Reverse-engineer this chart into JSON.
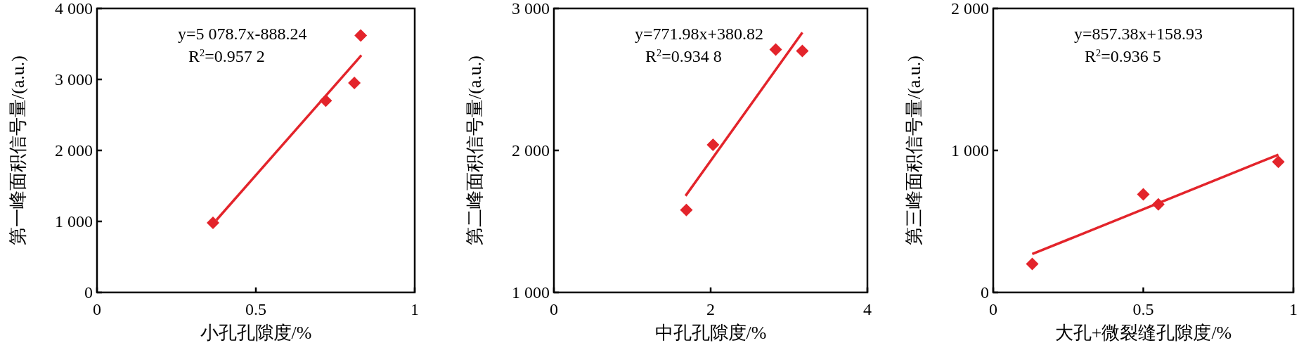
{
  "chart_data": [
    {
      "type": "scatter",
      "xlabel": "小孔孔隙度/%",
      "ylabel": "第一峰面积信号量/(a.u.)",
      "annotations": [
        "y=5 078.7x-888.24",
        "R$^{2}$=0.957 2"
      ],
      "xlim": [
        0,
        1
      ],
      "xticks": [
        0,
        0.5,
        1
      ],
      "ylim": [
        0,
        4000
      ],
      "yticks": [
        0,
        {
          "value": 1000,
          "label": "1 000"
        },
        {
          "value": 2000,
          "label": "2 000"
        },
        {
          "value": 3000,
          "label": "3 000"
        },
        {
          "value": 4000,
          "label": "4 000"
        }
      ],
      "series": [
        {
          "color": "#e3242b",
          "marker": "diamond",
          "x": [
            0.365,
            0.72,
            0.81,
            0.83
          ],
          "values": [
            980,
            2700,
            2950,
            3620
          ]
        },
        {
          "type": "line",
          "color": "#e3242b",
          "x": [
            0.376,
            0.832
          ],
          "values": [
            1020,
            3340
          ]
        }
      ]
    },
    {
      "type": "scatter",
      "xlabel": "中孔孔隙度/%",
      "ylabel": "第二峰面积信号量/(a.u.)",
      "annotations": [
        "y=771.98x+380.82",
        "R$^{2}$=0.934 8"
      ],
      "xlim": [
        0,
        4
      ],
      "xticks": [
        0,
        2,
        4
      ],
      "ylim": [
        1000,
        3000
      ],
      "yticks": [
        {
          "value": 1000,
          "label": "1 000"
        },
        {
          "value": 2000,
          "label": "2 000"
        },
        {
          "value": 3000,
          "label": "3 000"
        }
      ],
      "series": [
        {
          "color": "#e3242b",
          "marker": "diamond",
          "x": [
            1.69,
            2.03,
            2.83,
            3.17
          ],
          "values": [
            1580,
            2040,
            2710,
            2700
          ]
        },
        {
          "type": "line",
          "color": "#e3242b",
          "x": [
            1.68,
            3.17
          ],
          "values": [
            1680,
            2830
          ]
        }
      ]
    },
    {
      "type": "scatter",
      "xlabel": "大孔+微裂缝孔隙度/%",
      "ylabel": "第三峰面积信号量/(a.u.)",
      "annotations": [
        "y=857.38x+158.93",
        "R$^{2}$=0.936 5"
      ],
      "xlim": [
        0,
        1
      ],
      "xticks": [
        0,
        0.5,
        1
      ],
      "ylim": [
        0,
        2000
      ],
      "yticks": [
        0,
        {
          "value": 1000,
          "label": "1 000"
        },
        {
          "value": 2000,
          "label": "2 000"
        }
      ],
      "series": [
        {
          "color": "#e3242b",
          "marker": "diamond",
          "x": [
            0.13,
            0.5,
            0.55,
            0.95
          ],
          "values": [
            200,
            690,
            620,
            920
          ]
        },
        {
          "type": "line",
          "color": "#e3242b",
          "x": [
            0.13,
            0.95
          ],
          "values": [
            270,
            970
          ]
        }
      ]
    }
  ]
}
